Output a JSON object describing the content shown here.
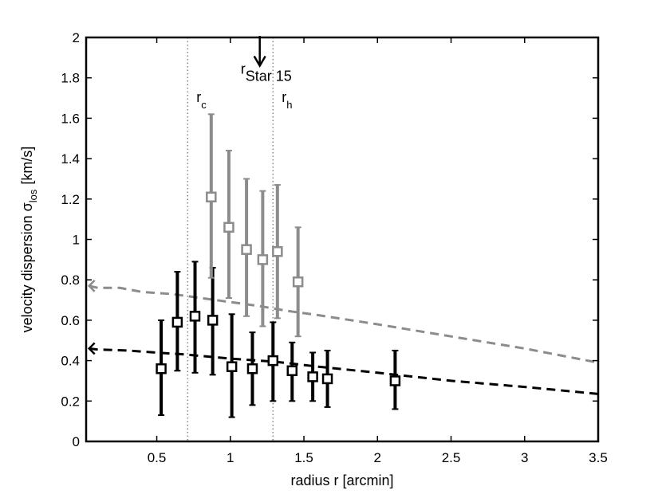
{
  "chart_data": {
    "type": "scatter",
    "title": "",
    "xlabel": "radius r [arcmin]",
    "ylabel": {
      "main": "velocity dispersion σ",
      "sub": "los",
      "unit": "[km/s]"
    },
    "xlim": [
      0.02,
      3.5
    ],
    "ylim": [
      0,
      2
    ],
    "xticks": [
      0.5,
      1,
      1.5,
      2,
      2.5,
      3,
      3.5
    ],
    "xtick_labels": [
      "0.5",
      "1",
      "1.5",
      "2",
      "2.5",
      "3",
      "3.5"
    ],
    "yticks": [
      0,
      0.2,
      0.4,
      0.6,
      0.8,
      1,
      1.2,
      1.4,
      1.6,
      1.8,
      2
    ],
    "ytick_labels": [
      "0",
      "0.2",
      "0.4",
      "0.6",
      "0.8",
      "1",
      "1.2",
      "1.4",
      "1.6",
      "1.8",
      "2"
    ],
    "grid": false,
    "series": [
      {
        "color": "#000000",
        "marker": "square",
        "points": [
          {
            "x": 0.53,
            "y": 0.36,
            "lo": 0.13,
            "hi": 0.6
          },
          {
            "x": 0.64,
            "y": 0.59,
            "lo": 0.35,
            "hi": 0.84
          },
          {
            "x": 0.76,
            "y": 0.62,
            "lo": 0.34,
            "hi": 0.89
          },
          {
            "x": 0.88,
            "y": 0.6,
            "lo": 0.33,
            "hi": 0.86
          },
          {
            "x": 1.01,
            "y": 0.37,
            "lo": 0.12,
            "hi": 0.63
          },
          {
            "x": 1.15,
            "y": 0.36,
            "lo": 0.18,
            "hi": 0.54
          },
          {
            "x": 1.29,
            "y": 0.4,
            "lo": 0.2,
            "hi": 0.59
          },
          {
            "x": 1.42,
            "y": 0.35,
            "lo": 0.2,
            "hi": 0.49
          },
          {
            "x": 1.56,
            "y": 0.32,
            "lo": 0.2,
            "hi": 0.44
          },
          {
            "x": 1.66,
            "y": 0.31,
            "lo": 0.17,
            "hi": 0.45
          },
          {
            "x": 2.12,
            "y": 0.3,
            "lo": 0.16,
            "hi": 0.45
          }
        ]
      },
      {
        "color": "#8c8c8c",
        "marker": "square",
        "points": [
          {
            "x": 0.87,
            "y": 1.21,
            "lo": 0.81,
            "hi": 1.62
          },
          {
            "x": 0.99,
            "y": 1.06,
            "lo": 0.71,
            "hi": 1.44
          },
          {
            "x": 1.11,
            "y": 0.95,
            "lo": 0.62,
            "hi": 1.3
          },
          {
            "x": 1.22,
            "y": 0.9,
            "lo": 0.57,
            "hi": 1.24
          },
          {
            "x": 1.32,
            "y": 0.94,
            "lo": 0.61,
            "hi": 1.27
          },
          {
            "x": 1.46,
            "y": 0.79,
            "lo": 0.52,
            "hi": 1.06
          }
        ]
      }
    ],
    "model_curves": [
      {
        "color": "#8c8c8c",
        "style": "dashed",
        "points": [
          [
            0.04,
            0.77
          ],
          [
            0.1,
            0.76
          ],
          [
            0.25,
            0.76
          ],
          [
            0.4,
            0.74
          ],
          [
            0.6,
            0.73
          ],
          [
            0.8,
            0.71
          ],
          [
            1.0,
            0.69
          ],
          [
            1.2,
            0.67
          ],
          [
            1.4,
            0.645
          ],
          [
            1.6,
            0.625
          ],
          [
            2.0,
            0.58
          ],
          [
            2.5,
            0.52
          ],
          [
            3.0,
            0.46
          ],
          [
            3.5,
            0.39
          ]
        ],
        "arrow_at_start": true
      },
      {
        "color": "#000000",
        "style": "dashed",
        "points": [
          [
            0.04,
            0.46
          ],
          [
            0.1,
            0.455
          ],
          [
            0.3,
            0.45
          ],
          [
            0.5,
            0.44
          ],
          [
            0.7,
            0.43
          ],
          [
            1.0,
            0.41
          ],
          [
            1.3,
            0.395
          ],
          [
            1.6,
            0.37
          ],
          [
            2.0,
            0.34
          ],
          [
            2.5,
            0.3
          ],
          [
            3.0,
            0.27
          ],
          [
            3.5,
            0.235
          ]
        ],
        "arrow_at_start": true
      }
    ],
    "vlines": [
      {
        "x": 0.71,
        "label": "r",
        "sub": "c",
        "label_y": 1.68
      },
      {
        "x": 1.29,
        "label": "r",
        "sub": "h",
        "label_y": 1.68
      }
    ],
    "annotation": {
      "label": "r",
      "sub": "Star 15",
      "x": 1.2,
      "arrow_from": 2.0,
      "arrow_to": 1.86,
      "label_y": 1.82
    }
  }
}
